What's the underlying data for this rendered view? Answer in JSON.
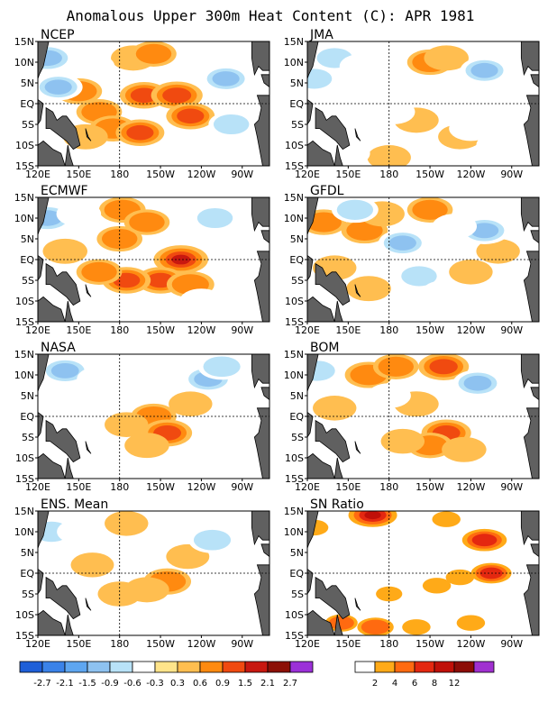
{
  "title": "Anomalous Upper 300m Heat Content (C): APR 1981",
  "chart_data": {
    "type": "heatmap",
    "region": {
      "lon_labels": [
        "120E",
        "150E",
        "180",
        "150W",
        "120W",
        "90W"
      ],
      "lat_labels": [
        "15N",
        "10N",
        "5N",
        "EQ",
        "5S",
        "10S",
        "15S"
      ]
    },
    "panels": [
      {
        "name": "NCEP",
        "blobs": [
          {
            "lon": 150,
            "lat": 3,
            "v": 0.7
          },
          {
            "lon": 165,
            "lat": -2,
            "v": 0.6
          },
          {
            "lon": 198,
            "lat": 2,
            "v": 0.9
          },
          {
            "lon": 222,
            "lat": 2,
            "v": 1.2
          },
          {
            "lon": 232,
            "lat": -3,
            "v": 0.9
          },
          {
            "lon": 175,
            "lat": -6,
            "v": 0.7
          },
          {
            "lon": 195,
            "lat": -7,
            "v": 0.9
          },
          {
            "lon": 155,
            "lat": -8,
            "v": 0.5
          },
          {
            "lon": 190,
            "lat": 11,
            "v": 0.5
          },
          {
            "lon": 205,
            "lat": 12,
            "v": 0.6
          },
          {
            "lon": 127,
            "lat": 11,
            "v": -1.3
          },
          {
            "lon": 135,
            "lat": 4,
            "v": -0.9
          },
          {
            "lon": 160,
            "lat": 9,
            "v": -0.5
          },
          {
            "lon": 258,
            "lat": 6,
            "v": -0.9
          },
          {
            "lon": 262,
            "lat": -5,
            "v": -0.6
          },
          {
            "lon": 240,
            "lat": 12,
            "v": -0.5
          },
          {
            "lon": 175,
            "lat": -13,
            "v": -0.5
          },
          {
            "lon": 225,
            "lat": -12,
            "v": -0.4
          }
        ]
      },
      {
        "name": "JMA",
        "blobs": [
          {
            "lon": 210,
            "lat": 10,
            "v": 0.6
          },
          {
            "lon": 222,
            "lat": 11,
            "v": 0.5
          },
          {
            "lon": 200,
            "lat": -4,
            "v": 0.5
          },
          {
            "lon": 180,
            "lat": -13,
            "v": 0.4
          },
          {
            "lon": 232,
            "lat": -8,
            "v": 0.4
          },
          {
            "lon": 125,
            "lat": 6,
            "v": -0.6
          },
          {
            "lon": 140,
            "lat": 11,
            "v": -0.6
          },
          {
            "lon": 160,
            "lat": 9,
            "v": -0.5
          },
          {
            "lon": 183,
            "lat": -2,
            "v": -0.4
          },
          {
            "lon": 250,
            "lat": 8,
            "v": -0.9
          },
          {
            "lon": 240,
            "lat": -6,
            "v": -0.4
          },
          {
            "lon": 260,
            "lat": -10,
            "v": -0.4
          },
          {
            "lon": 150,
            "lat": -12,
            "v": -0.4
          }
        ]
      },
      {
        "name": "ECMWF",
        "blobs": [
          {
            "lon": 225,
            "lat": 0,
            "v": 1.5
          },
          {
            "lon": 210,
            "lat": -5,
            "v": 0.9
          },
          {
            "lon": 232,
            "lat": -6,
            "v": 0.8
          },
          {
            "lon": 185,
            "lat": -5,
            "v": 0.9
          },
          {
            "lon": 165,
            "lat": -3,
            "v": 0.6
          },
          {
            "lon": 140,
            "lat": 2,
            "v": 0.5
          },
          {
            "lon": 180,
            "lat": 5,
            "v": 0.6
          },
          {
            "lon": 182,
            "lat": 12,
            "v": 0.7
          },
          {
            "lon": 200,
            "lat": 9,
            "v": 0.6
          },
          {
            "lon": 127,
            "lat": 10,
            "v": -1.3
          },
          {
            "lon": 150,
            "lat": 11,
            "v": -0.5
          },
          {
            "lon": 250,
            "lat": 10,
            "v": -0.6
          },
          {
            "lon": 240,
            "lat": -10,
            "v": -0.4
          },
          {
            "lon": 200,
            "lat": -12,
            "v": -0.4
          }
        ]
      },
      {
        "name": "GFDL",
        "blobs": [
          {
            "lon": 132,
            "lat": 9,
            "v": 0.6
          },
          {
            "lon": 162,
            "lat": 7,
            "v": 0.7
          },
          {
            "lon": 175,
            "lat": 11,
            "v": 0.5
          },
          {
            "lon": 210,
            "lat": 12,
            "v": 0.6
          },
          {
            "lon": 140,
            "lat": -2,
            "v": 0.4
          },
          {
            "lon": 240,
            "lat": -3,
            "v": 0.4
          },
          {
            "lon": 260,
            "lat": 2,
            "v": 0.4
          },
          {
            "lon": 165,
            "lat": -7,
            "v": 0.5
          },
          {
            "lon": 155,
            "lat": 12,
            "v": -0.7
          },
          {
            "lon": 190,
            "lat": 4,
            "v": -0.9
          },
          {
            "lon": 202,
            "lat": -4,
            "v": -0.6
          },
          {
            "lon": 250,
            "lat": 7,
            "v": -1.1
          },
          {
            "lon": 228,
            "lat": 8,
            "v": -0.5
          },
          {
            "lon": 195,
            "lat": -12,
            "v": -0.5
          },
          {
            "lon": 220,
            "lat": -8,
            "v": -0.4
          }
        ]
      },
      {
        "name": "NASA",
        "blobs": [
          {
            "lon": 205,
            "lat": 0,
            "v": 0.6
          },
          {
            "lon": 215,
            "lat": -4,
            "v": 1.0
          },
          {
            "lon": 200,
            "lat": -7,
            "v": 0.5
          },
          {
            "lon": 185,
            "lat": -2,
            "v": 0.4
          },
          {
            "lon": 232,
            "lat": 3,
            "v": 0.4
          },
          {
            "lon": 140,
            "lat": 11,
            "v": -1.0
          },
          {
            "lon": 165,
            "lat": 9,
            "v": -0.5
          },
          {
            "lon": 245,
            "lat": 9,
            "v": -1.1
          },
          {
            "lon": 255,
            "lat": 12,
            "v": -0.8
          },
          {
            "lon": 160,
            "lat": -6,
            "v": -0.4
          },
          {
            "lon": 175,
            "lat": -13,
            "v": -0.5
          },
          {
            "lon": 250,
            "lat": -9,
            "v": -0.4
          }
        ]
      },
      {
        "name": "BOM",
        "blobs": [
          {
            "lon": 220,
            "lat": 12,
            "v": 1.1
          },
          {
            "lon": 165,
            "lat": 10,
            "v": 0.8
          },
          {
            "lon": 185,
            "lat": 12,
            "v": 0.6
          },
          {
            "lon": 200,
            "lat": 3,
            "v": 0.5
          },
          {
            "lon": 222,
            "lat": -4,
            "v": 1.0
          },
          {
            "lon": 210,
            "lat": -7,
            "v": 0.6
          },
          {
            "lon": 235,
            "lat": -8,
            "v": 0.5
          },
          {
            "lon": 140,
            "lat": 2,
            "v": 0.4
          },
          {
            "lon": 190,
            "lat": -6,
            "v": 0.4
          },
          {
            "lon": 127,
            "lat": 11,
            "v": -0.7
          },
          {
            "lon": 245,
            "lat": 8,
            "v": -1.0
          },
          {
            "lon": 180,
            "lat": 5,
            "v": -0.4
          },
          {
            "lon": 165,
            "lat": -12,
            "v": -0.4
          }
        ]
      },
      {
        "name": "ENS. Mean",
        "blobs": [
          {
            "lon": 215,
            "lat": -2,
            "v": 0.8
          },
          {
            "lon": 200,
            "lat": -4,
            "v": 0.5
          },
          {
            "lon": 180,
            "lat": -5,
            "v": 0.4
          },
          {
            "lon": 185,
            "lat": 12,
            "v": 0.4
          },
          {
            "lon": 160,
            "lat": 2,
            "v": 0.35
          },
          {
            "lon": 230,
            "lat": 4,
            "v": 0.35
          },
          {
            "lon": 130,
            "lat": 10,
            "v": -0.7
          },
          {
            "lon": 150,
            "lat": 10,
            "v": -0.4
          },
          {
            "lon": 248,
            "lat": 8,
            "v": -0.8
          },
          {
            "lon": 175,
            "lat": -13,
            "v": -0.4
          }
        ]
      },
      {
        "name": "SN Ratio",
        "blobs": [
          {
            "lon": 168,
            "lat": 14,
            "v": 8
          },
          {
            "lon": 250,
            "lat": 8,
            "v": 7
          },
          {
            "lon": 255,
            "lat": 0,
            "v": 6
          },
          {
            "lon": 232,
            "lat": -1,
            "v": 3
          },
          {
            "lon": 215,
            "lat": -3,
            "v": 3
          },
          {
            "lon": 180,
            "lat": -5,
            "v": 2.5
          },
          {
            "lon": 145,
            "lat": -12,
            "v": 4
          },
          {
            "lon": 170,
            "lat": -13,
            "v": 5
          },
          {
            "lon": 200,
            "lat": -13,
            "v": 3
          },
          {
            "lon": 240,
            "lat": -12,
            "v": 3
          },
          {
            "lon": 222,
            "lat": 13,
            "v": 3
          },
          {
            "lon": 125,
            "lat": 11,
            "v": 3
          }
        ]
      }
    ],
    "legend_left": {
      "colors": [
        "#1e5fd8",
        "#3a82e8",
        "#5ea6f0",
        "#8ec2f0",
        "#b8e2f8",
        "#ffffff",
        "#ffe48a",
        "#ffbe50",
        "#ff8a10",
        "#f04a10",
        "#c81810",
        "#8c1006",
        "#9b30d8"
      ],
      "labels": [
        "-2.7",
        "-2.1",
        "-1.5",
        "-0.9",
        "-0.6",
        "-0.3",
        "0.3",
        "0.6",
        "0.9",
        "1.5",
        "2.1",
        "2.7"
      ]
    },
    "legend_right": {
      "colors": [
        "#ffffff",
        "#ffaa18",
        "#ff6a10",
        "#e42810",
        "#c01008",
        "#8c0c06",
        "#a030d0"
      ],
      "labels": [
        "2",
        "4",
        "6",
        "8",
        "12"
      ]
    }
  }
}
